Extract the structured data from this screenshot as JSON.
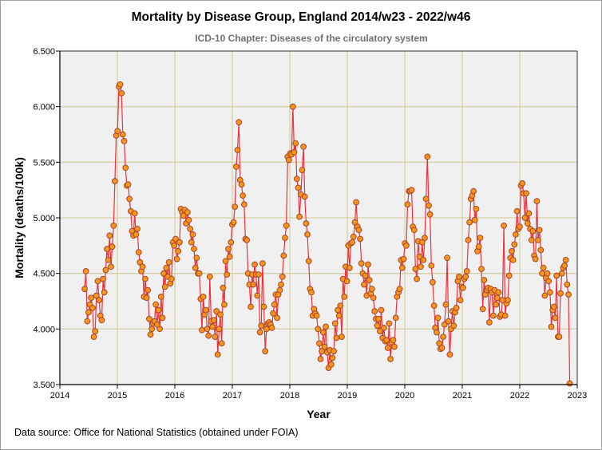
{
  "chart_data": {
    "type": "line",
    "title": "Mortality by Disease Group, England 2014/w23 - 2022/w46",
    "subtitle": "ICD-10 Chapter: Diseases of the circulatory system",
    "xlabel": "Year",
    "ylabel": "Mortality (deaths/100k)",
    "xlim": [
      2014,
      2023
    ],
    "ylim": [
      3.5,
      6.5
    ],
    "x_ticks": [
      "2014",
      "2015",
      "2016",
      "2017",
      "2018",
      "2019",
      "2020",
      "2021",
      "2022",
      "2023"
    ],
    "y_ticks": [
      "3.500",
      "4.000",
      "4.500",
      "5.000",
      "5.500",
      "6.000",
      "6.500"
    ],
    "grid": true,
    "legend": "none",
    "x_start": 2014.43,
    "x_end": 2022.87,
    "x_interval": "weekly",
    "series": [
      {
        "name": "Diseases of the circulatory system",
        "line_color": "#f0303a",
        "marker_fill": "#f7941d",
        "marker_edge": "#a8452a",
        "values": [
          4.36,
          4.52,
          4.07,
          4.15,
          4.22,
          4.28,
          4.19,
          3.93,
          3.98,
          4.3,
          4.43,
          4.26,
          4.12,
          4.08,
          4.45,
          4.33,
          4.53,
          4.72,
          4.62,
          4.84,
          4.56,
          4.74,
          4.93,
          5.33,
          5.74,
          5.78,
          6.18,
          6.2,
          6.12,
          5.75,
          5.69,
          5.45,
          5.29,
          5.3,
          5.17,
          5.06,
          4.88,
          4.84,
          5.04,
          4.85,
          4.9,
          4.69,
          4.6,
          4.52,
          4.56,
          4.29,
          4.45,
          4.28,
          4.35,
          4.09,
          3.95,
          4.0,
          4.05,
          4.07,
          4.22,
          4.04,
          4.17,
          4.0,
          4.29,
          4.1,
          4.5,
          4.38,
          4.55,
          4.47,
          4.6,
          4.41,
          4.45,
          4.78,
          4.75,
          4.81,
          4.63,
          4.7,
          4.78,
          5.08,
          5.05,
          5.02,
          5.07,
          4.95,
          5.05,
          4.98,
          4.9,
          4.78,
          4.85,
          4.72,
          4.55,
          4.64,
          4.5,
          4.5,
          4.27,
          3.99,
          4.29,
          4.13,
          4.17,
          4.0,
          3.94,
          4.47,
          4.07,
          4.02,
          4.08,
          3.93,
          4.16,
          3.77,
          4.0,
          4.13,
          3.87,
          4.37,
          4.22,
          4.61,
          4.49,
          4.72,
          4.65,
          4.78,
          4.94,
          4.96,
          5.1,
          5.46,
          5.61,
          5.86,
          5.34,
          5.3,
          5.2,
          5.12,
          4.81,
          4.8,
          4.5,
          4.4,
          4.2,
          4.49,
          4.4,
          4.58,
          4.49,
          4.3,
          4.49,
          3.97,
          4.03,
          4.59,
          4.2,
          3.8,
          4.0,
          4.05,
          4.06,
          4.04,
          4.01,
          4.14,
          4.22,
          4.31,
          4.1,
          4.31,
          4.35,
          4.4,
          4.47,
          4.66,
          4.82,
          4.93,
          5.55,
          5.52,
          5.58,
          5.57,
          6.0,
          5.59,
          5.67,
          5.35,
          5.27,
          5.01,
          5.21,
          5.43,
          5.64,
          5.19,
          4.95,
          4.85,
          4.61,
          4.36,
          4.33,
          4.12,
          4.18,
          4.14,
          4.12,
          4.0,
          3.87,
          3.73,
          3.8,
          3.97,
          3.84,
          4.02,
          3.79,
          3.65,
          3.81,
          3.68,
          3.74,
          3.8,
          4.05,
          3.92,
          4.17,
          4.12,
          4.21,
          3.93,
          4.45,
          4.29,
          4.56,
          4.43,
          4.75,
          4.55,
          4.77,
          4.78,
          4.83,
          4.96,
          5.14,
          4.92,
          4.89,
          4.81,
          4.59,
          4.5,
          4.4,
          4.48,
          4.3,
          4.58,
          4.44,
          4.32,
          4.36,
          4.28,
          4.16,
          4.09,
          4.03,
          4.09,
          3.98,
          4.17,
          3.92,
          4.01,
          3.89,
          3.9,
          3.83,
          4.05,
          3.73,
          3.88,
          3.9,
          3.84,
          4.1,
          4.29,
          4.33,
          4.36,
          4.62,
          4.55,
          4.63,
          4.77,
          4.75,
          5.12,
          5.24,
          5.24,
          5.25,
          4.92,
          4.89,
          4.54,
          4.45,
          4.79,
          4.65,
          4.56,
          4.78,
          4.62,
          4.82,
          5.17,
          5.55,
          5.11,
          5.03,
          4.57,
          4.42,
          4.21,
          4.01,
          3.97,
          4.1,
          3.87,
          3.82,
          3.83,
          3.93,
          4.04,
          4.22,
          4.64,
          4.07,
          3.77,
          4.0,
          4.16,
          4.03,
          4.15,
          4.19,
          4.43,
          4.47,
          4.26,
          4.38,
          4.37,
          4.45,
          4.47,
          4.52,
          4.8,
          4.96,
          5.17,
          5.2,
          5.24,
          4.98,
          5.08,
          4.7,
          4.74,
          4.82,
          4.54,
          4.18,
          4.44,
          4.31,
          4.35,
          4.37,
          4.06,
          4.36,
          4.33,
          4.12,
          4.35,
          4.22,
          4.28,
          4.33,
          4.11,
          4.13,
          4.26,
          4.93,
          4.12,
          4.23,
          4.26,
          4.48,
          4.64,
          4.7,
          4.62,
          4.76,
          4.85,
          5.06,
          4.9,
          4.92,
          5.29,
          5.31,
          5.22,
          5.0,
          5.22,
          4.95,
          5.04,
          4.9,
          4.8,
          4.88,
          4.66,
          4.63,
          5.15,
          4.8,
          4.89,
          4.71,
          4.5,
          4.55,
          4.3,
          4.46,
          4.5,
          4.43,
          4.33,
          4.02,
          4.17,
          4.2,
          4.1,
          4.48,
          3.93,
          3.93,
          4.32,
          4.5,
          4.55,
          4.57,
          4.62,
          4.4,
          4.31,
          3.51
        ]
      }
    ]
  },
  "footer": "Data source: Office for National Statistics (obtained under FOIA)"
}
